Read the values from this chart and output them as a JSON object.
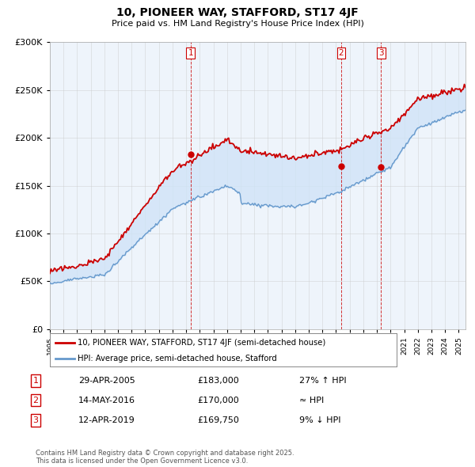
{
  "title": "10, PIONEER WAY, STAFFORD, ST17 4JF",
  "subtitle": "Price paid vs. HM Land Registry's House Price Index (HPI)",
  "ylim": [
    0,
    300000
  ],
  "yticks": [
    0,
    50000,
    100000,
    150000,
    200000,
    250000,
    300000
  ],
  "xlim_start": 1995.0,
  "xlim_end": 2025.5,
  "sale_color": "#cc0000",
  "hpi_color": "#6699cc",
  "fill_color": "#ddeeff",
  "sale_label": "10, PIONEER WAY, STAFFORD, ST17 4JF (semi-detached house)",
  "hpi_label": "HPI: Average price, semi-detached house, Stafford",
  "sales": [
    {
      "num": 1,
      "date_label": "29-APR-2005",
      "price": "£183,000",
      "vs": "27% ↑ HPI",
      "year": 2005.33
    },
    {
      "num": 2,
      "date_label": "14-MAY-2016",
      "price": "£170,000",
      "vs": "≈ HPI",
      "year": 2016.38
    },
    {
      "num": 3,
      "date_label": "12-APR-2019",
      "price": "£169,750",
      "vs": "9% ↓ HPI",
      "year": 2019.29
    }
  ],
  "sale_price_map": {
    "1": 183000,
    "2": 170000,
    "3": 169750
  },
  "footer": "Contains HM Land Registry data © Crown copyright and database right 2025.\nThis data is licensed under the Open Government Licence v3.0.",
  "background_color": "#ffffff",
  "grid_color": "#cccccc"
}
